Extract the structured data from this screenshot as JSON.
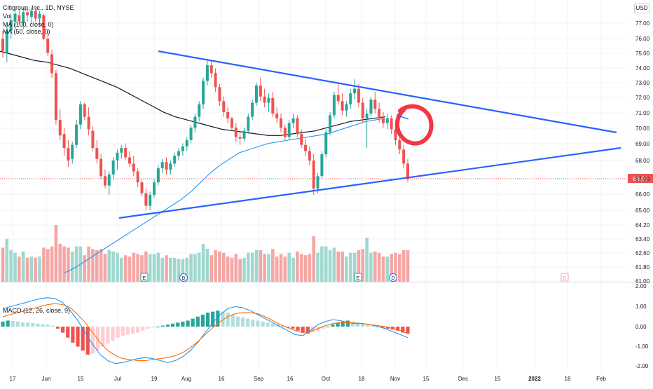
{
  "legend": {
    "main": "Citigroup, Inc., 1D, NYSE",
    "vol": "Vol",
    "ma1": "MA (100, close, 0)",
    "ma2": "MA (50, close, 0)",
    "macd": "MACD (12, 26, close, 9)"
  },
  "currency": "USD",
  "colors": {
    "up": "#26a69a",
    "down": "#ef5350",
    "trendline": "#2962ff",
    "ma100": "#2196f3",
    "ma50": "#131722",
    "macd_line": "#2196f3",
    "signal_line": "#ff6d00",
    "marker": "#f23645"
  },
  "current_price": "66.99",
  "chart_data": [
    {
      "type": "candlestick",
      "title": "Citigroup, Inc., 1D, NYSE",
      "y_ticks": [
        "77.00",
        "76.00",
        "75.00",
        "74.00",
        "73.00",
        "72.00",
        "71.00",
        "70.00",
        "69.00",
        "68.00",
        "67.00",
        "66.00",
        "65.00",
        "64.20",
        "63.40",
        "62.60",
        "61.80",
        "61.00"
      ],
      "x_ticks": [
        "17",
        "Jun",
        "15",
        "Jul",
        "19",
        "Aug",
        "16",
        "Sep",
        "16",
        "Oct",
        "18",
        "Nov",
        "15",
        "Dec",
        "15",
        "2022",
        "18",
        "Feb"
      ],
      "ylim": [
        61.0,
        78.0
      ],
      "candles": [
        [
          76.0,
          76.5,
          74.8,
          75.2
        ],
        [
          75.1,
          76.9,
          74.5,
          76.5
        ],
        [
          76.5,
          77.5,
          76.0,
          77.2
        ],
        [
          77.1,
          77.9,
          76.6,
          77.6
        ],
        [
          77.5,
          77.9,
          76.9,
          77.1
        ],
        [
          77.0,
          78.0,
          76.6,
          77.7
        ],
        [
          77.7,
          78.0,
          77.1,
          77.5
        ],
        [
          77.4,
          78.0,
          77.0,
          77.8
        ],
        [
          77.8,
          78.0,
          77.1,
          77.3
        ],
        [
          77.3,
          77.8,
          76.8,
          77.6
        ],
        [
          77.5,
          77.6,
          75.9,
          76.0
        ],
        [
          76.0,
          76.5,
          74.9,
          75.1
        ],
        [
          75.0,
          75.3,
          73.5,
          73.8
        ],
        [
          73.8,
          74.0,
          70.5,
          70.8
        ],
        [
          70.8,
          71.5,
          69.5,
          69.8
        ],
        [
          69.9,
          70.3,
          68.5,
          69.0
        ],
        [
          69.0,
          69.5,
          67.8,
          68.2
        ],
        [
          68.3,
          69.4,
          68.0,
          69.2
        ],
        [
          69.2,
          70.8,
          69.0,
          70.5
        ],
        [
          70.5,
          72.0,
          70.2,
          71.8
        ],
        [
          71.8,
          71.9,
          70.8,
          71.0
        ],
        [
          71.0,
          71.6,
          69.8,
          70.2
        ],
        [
          70.1,
          70.4,
          68.8,
          69.0
        ],
        [
          69.0,
          69.5,
          68.0,
          68.3
        ],
        [
          68.3,
          68.6,
          67.0,
          67.2
        ],
        [
          67.2,
          67.6,
          66.4,
          66.6
        ],
        [
          66.6,
          67.5,
          66.0,
          67.3
        ],
        [
          67.3,
          68.4,
          67.0,
          68.2
        ],
        [
          68.2,
          68.9,
          67.6,
          68.7
        ],
        [
          68.7,
          69.2,
          68.3,
          69.0
        ],
        [
          69.0,
          69.3,
          68.2,
          68.4
        ],
        [
          68.4,
          68.8,
          67.8,
          68.0
        ],
        [
          68.0,
          68.5,
          67.2,
          67.5
        ],
        [
          67.5,
          67.7,
          66.5,
          66.8
        ],
        [
          66.8,
          67.0,
          65.9,
          66.1
        ],
        [
          66.1,
          66.4,
          65.0,
          65.3
        ],
        [
          65.3,
          66.2,
          65.0,
          66.0
        ],
        [
          66.0,
          67.0,
          65.8,
          66.8
        ],
        [
          66.8,
          67.9,
          66.6,
          67.7
        ],
        [
          67.7,
          68.3,
          67.4,
          68.1
        ],
        [
          68.1,
          68.4,
          67.3,
          67.6
        ],
        [
          67.6,
          68.2,
          67.3,
          68.0
        ],
        [
          68.0,
          68.7,
          67.8,
          68.5
        ],
        [
          68.5,
          69.0,
          68.2,
          68.8
        ],
        [
          68.8,
          69.3,
          68.5,
          69.1
        ],
        [
          69.1,
          69.7,
          68.8,
          69.5
        ],
        [
          69.5,
          70.5,
          69.3,
          70.3
        ],
        [
          70.3,
          71.2,
          70.0,
          71.0
        ],
        [
          71.0,
          72.0,
          70.7,
          71.8
        ],
        [
          71.8,
          73.5,
          71.5,
          73.3
        ],
        [
          73.3,
          74.6,
          73.0,
          74.3
        ],
        [
          74.3,
          74.6,
          73.5,
          73.8
        ],
        [
          73.8,
          74.1,
          72.6,
          72.9
        ],
        [
          72.9,
          73.1,
          71.7,
          72.0
        ],
        [
          72.0,
          72.3,
          71.0,
          71.3
        ],
        [
          71.3,
          71.6,
          70.6,
          70.9
        ],
        [
          70.9,
          71.0,
          70.1,
          70.3
        ],
        [
          70.3,
          70.6,
          69.4,
          69.7
        ],
        [
          69.7,
          70.0,
          69.2,
          69.6
        ],
        [
          69.6,
          70.3,
          69.4,
          70.1
        ],
        [
          70.1,
          71.2,
          69.9,
          71.0
        ],
        [
          71.0,
          72.1,
          70.8,
          71.9
        ],
        [
          71.9,
          73.2,
          71.7,
          73.0
        ],
        [
          73.0,
          73.5,
          72.0,
          72.3
        ],
        [
          72.3,
          72.8,
          71.6,
          71.9
        ],
        [
          71.9,
          72.5,
          71.3,
          72.2
        ],
        [
          72.2,
          72.6,
          71.0,
          71.2
        ],
        [
          71.2,
          71.6,
          70.6,
          70.9
        ],
        [
          70.9,
          71.2,
          70.0,
          70.3
        ],
        [
          70.3,
          70.5,
          69.5,
          69.7
        ],
        [
          69.7,
          70.8,
          69.5,
          70.6
        ],
        [
          70.6,
          71.2,
          70.3,
          70.9
        ],
        [
          70.9,
          71.1,
          69.7,
          69.9
        ],
        [
          69.9,
          70.2,
          69.0,
          69.2
        ],
        [
          69.2,
          69.6,
          68.5,
          68.8
        ],
        [
          68.8,
          69.1,
          67.9,
          68.2
        ],
        [
          68.2,
          68.6,
          66.0,
          66.4
        ],
        [
          66.4,
          67.4,
          66.1,
          67.2
        ],
        [
          67.2,
          68.8,
          67.0,
          68.6
        ],
        [
          68.6,
          70.2,
          68.4,
          70.0
        ],
        [
          70.0,
          71.3,
          69.8,
          71.1
        ],
        [
          71.1,
          72.6,
          70.9,
          72.4
        ],
        [
          72.4,
          73.2,
          71.8,
          72.0
        ],
        [
          72.0,
          72.5,
          71.1,
          71.4
        ],
        [
          71.4,
          72.0,
          71.0,
          71.8
        ],
        [
          71.8,
          72.8,
          71.5,
          72.5
        ],
        [
          72.5,
          73.4,
          72.1,
          72.8
        ],
        [
          72.8,
          73.1,
          71.6,
          71.9
        ],
        [
          71.9,
          72.2,
          70.6,
          70.9
        ],
        [
          70.9,
          71.5,
          69.0,
          71.2
        ],
        [
          71.2,
          72.3,
          71.0,
          72.1
        ],
        [
          72.1,
          72.6,
          71.2,
          71.5
        ],
        [
          71.5,
          71.9,
          70.6,
          70.9
        ],
        [
          70.9,
          71.3,
          70.3,
          70.6
        ],
        [
          70.6,
          71.2,
          70.2,
          70.9
        ],
        [
          70.9,
          71.1,
          69.9,
          70.2
        ],
        [
          70.2,
          70.5,
          69.2,
          69.5
        ],
        [
          69.5,
          69.8,
          68.6,
          68.9
        ],
        [
          68.9,
          69.2,
          67.7,
          68.0
        ],
        [
          68.0,
          68.3,
          66.8,
          67.0
        ]
      ],
      "volume_up_color": "#26a69a",
      "down_color": "#ef5350",
      "ma100": [
        75.2,
        75.0,
        74.8,
        74.6,
        74.5,
        74.3,
        74.1,
        73.8,
        73.5,
        73.2,
        72.9,
        72.5,
        72.1,
        71.7,
        71.3,
        71.0,
        70.8,
        70.6,
        70.4,
        70.2,
        70.1,
        70.0,
        69.9,
        69.8,
        69.8,
        69.9,
        70.0,
        70.1,
        70.3,
        70.5,
        70.7,
        70.8,
        70.9,
        71.0
      ],
      "ma50": [
        61.0,
        61.3,
        61.7,
        62.1,
        62.5,
        62.9,
        63.3,
        63.7,
        64.1,
        64.5,
        64.9,
        65.3,
        65.7,
        66.2,
        66.8,
        67.4,
        67.9,
        68.3,
        68.7,
        68.9,
        69.1,
        69.3,
        69.4,
        69.5,
        69.6,
        69.7,
        69.8,
        69.9,
        70.1,
        70.3,
        70.5,
        70.7,
        70.8,
        70.9
      ],
      "trendlines": [
        {
          "from": [
            0,
            75.3
          ],
          "to": [
            1,
            69.9
          ]
        },
        {
          "from": [
            0,
            64.8
          ],
          "to": [
            1,
            68.9
          ]
        }
      ]
    },
    {
      "type": "histogram",
      "title": "MACD (12, 26, close, 9)",
      "y_ticks": [
        "2.00",
        "1.00",
        "0.00",
        "-1.00",
        "-2.00"
      ],
      "ylim": [
        -2.1,
        2.1
      ],
      "histogram": [
        0.25,
        0.3,
        0.28,
        0.26,
        0.22,
        0.2,
        0.18,
        0.15,
        0.12,
        0.1,
        0.05,
        -0.1,
        -0.3,
        -0.55,
        -0.8,
        -1.0,
        -1.2,
        -1.4,
        -1.35,
        -1.2,
        -1.0,
        -0.85,
        -0.7,
        -0.55,
        -0.45,
        -0.4,
        -0.35,
        -0.3,
        -0.2,
        -0.1,
        -0.05,
        0.0,
        0.05,
        0.1,
        0.15,
        0.2,
        0.25,
        0.3,
        0.4,
        0.5,
        0.6,
        0.7,
        0.75,
        0.8,
        0.75,
        0.7,
        0.6,
        0.5,
        0.45,
        0.4,
        0.35,
        0.3,
        0.25,
        0.2,
        0.15,
        0.1,
        0.05,
        -0.05,
        -0.1,
        -0.2,
        -0.3,
        -0.35,
        -0.3,
        -0.2,
        -0.1,
        0.0,
        0.1,
        0.2,
        0.25,
        0.3,
        0.25,
        0.2,
        0.15,
        0.1,
        0.05,
        0.0,
        -0.05,
        -0.1,
        -0.15,
        -0.2,
        -0.3,
        -0.35
      ],
      "macd": [
        0.9,
        1.0,
        1.1,
        1.2,
        1.3,
        1.4,
        1.45,
        1.4,
        1.2,
        0.8,
        0.3,
        -0.3,
        -0.9,
        -1.4,
        -1.7,
        -1.85,
        -1.8,
        -1.7,
        -1.6,
        -1.55,
        -1.6,
        -1.7,
        -1.8,
        -1.7,
        -1.5,
        -1.2,
        -0.8,
        -0.3,
        0.2,
        0.6,
        0.9,
        1.0,
        0.95,
        0.8,
        0.6,
        0.4,
        0.2,
        0.0,
        -0.2,
        -0.4,
        -0.45,
        -0.2,
        0.1,
        0.25,
        0.35,
        0.3,
        0.2,
        0.15,
        0.15,
        0.1,
        0.0,
        -0.1,
        -0.25,
        -0.4,
        -0.55
      ],
      "signal": [
        0.5,
        0.6,
        0.7,
        0.8,
        0.9,
        1.0,
        1.1,
        1.15,
        1.1,
        0.95,
        0.6,
        0.2,
        -0.3,
        -0.8,
        -1.2,
        -1.45,
        -1.6,
        -1.65,
        -1.7,
        -1.7,
        -1.65,
        -1.6,
        -1.55,
        -1.45,
        -1.3,
        -1.05,
        -0.75,
        -0.4,
        -0.05,
        0.25,
        0.5,
        0.65,
        0.7,
        0.7,
        0.65,
        0.5,
        0.3,
        0.1,
        -0.05,
        -0.2,
        -0.3,
        -0.25,
        -0.1,
        0.05,
        0.15,
        0.2,
        0.2,
        0.18,
        0.15,
        0.1,
        0.05,
        0.0,
        -0.1,
        -0.2,
        -0.35
      ]
    }
  ],
  "markers": [
    "E",
    "D",
    "E",
    "D",
    "E"
  ]
}
